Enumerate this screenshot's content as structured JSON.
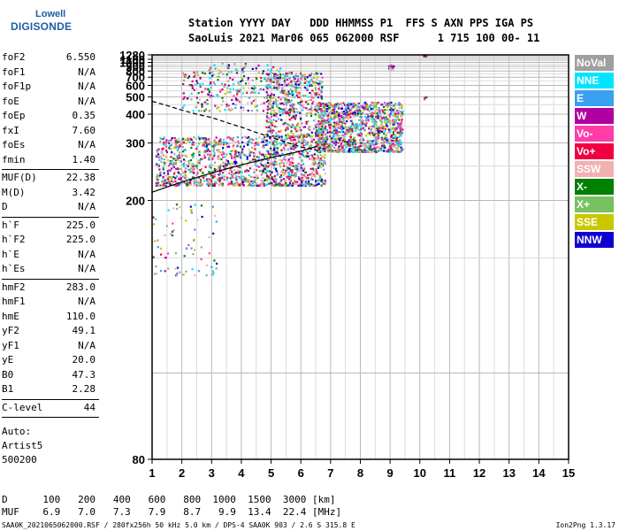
{
  "logo": {
    "line1": "Lowell",
    "line2": "DIGISONDE"
  },
  "header": {
    "line1": "Station YYYY DAY   DDD HHMMSS P1  FFS S AXN PPS IGA PS",
    "line2": "SaoLuis 2021 Mar06 065 062000 RSF      1 715 100 00- 11"
  },
  "params": [
    {
      "name": "foF2",
      "value": "6.550"
    },
    {
      "name": "foF1",
      "value": "N/A"
    },
    {
      "name": "foF1p",
      "value": "N/A"
    },
    {
      "name": "foE",
      "value": "N/A"
    },
    {
      "name": "foEp",
      "value": "0.35"
    },
    {
      "name": "fxI",
      "value": "7.60"
    },
    {
      "name": "foEs",
      "value": "N/A"
    },
    {
      "name": "fmin",
      "value": "1.40"
    },
    {
      "name": "MUF(D)",
      "value": "22.38"
    },
    {
      "name": "M(D)",
      "value": "3.42"
    },
    {
      "name": "D",
      "value": "N/A"
    },
    {
      "name": "h`F",
      "value": "225.0"
    },
    {
      "name": "h`F2",
      "value": "225.0"
    },
    {
      "name": "h`E",
      "value": "N/A"
    },
    {
      "name": "h`Es",
      "value": "N/A"
    },
    {
      "name": "hmF2",
      "value": "283.0"
    },
    {
      "name": "hmF1",
      "value": "N/A"
    },
    {
      "name": "hmE",
      "value": "110.0"
    },
    {
      "name": "yF2",
      "value": "49.1"
    },
    {
      "name": "yF1",
      "value": "N/A"
    },
    {
      "name": "yE",
      "value": "20.0"
    },
    {
      "name": "B0",
      "value": "47.3"
    },
    {
      "name": "B1",
      "value": "2.28"
    },
    {
      "name": "C-level",
      "value": "44"
    }
  ],
  "auto": {
    "line1": "Auto:",
    "line2": "Artist5",
    "line3": "500200"
  },
  "legend": [
    {
      "label": "NoVal",
      "color": "#a0a0a0"
    },
    {
      "label": "NNE",
      "color": "#00e5ff"
    },
    {
      "label": "E",
      "color": "#3aa0f0"
    },
    {
      "label": "W",
      "color": "#b000a0"
    },
    {
      "label": "Vo-",
      "color": "#ff3ca8"
    },
    {
      "label": "Vo+",
      "color": "#f00040"
    },
    {
      "label": "SSW",
      "color": "#f4b0b0"
    },
    {
      "label": "X-",
      "color": "#008000"
    },
    {
      "label": "X+",
      "color": "#78c060"
    },
    {
      "label": "SSE",
      "color": "#c8c800"
    },
    {
      "label": "NNW",
      "color": "#1000d0"
    }
  ],
  "chart_data": {
    "type": "scatter",
    "title": "",
    "xlabel": "",
    "ylabel": "",
    "xlim": [
      1,
      15
    ],
    "ylim": [
      80,
      1280
    ],
    "y_scale": "reciprocal",
    "grid": true,
    "x_ticks": [
      "1",
      "2",
      "3",
      "4",
      "5",
      "6",
      "7",
      "8",
      "9",
      "10",
      "11",
      "12",
      "13",
      "14",
      "15"
    ],
    "y_ticks": [
      {
        "value": 80,
        "label": "80"
      },
      {
        "value": 200,
        "label": "200"
      },
      {
        "value": 300,
        "label": "300"
      },
      {
        "value": 400,
        "label": "400"
      },
      {
        "value": 500,
        "label": "500"
      },
      {
        "value": 600,
        "label": "600"
      },
      {
        "value": 700,
        "label": "700"
      },
      {
        "value": 800,
        "label": "800"
      },
      {
        "value": 900,
        "label": "900"
      },
      {
        "value": 1000,
        "label": "1000"
      },
      {
        "value": 1100,
        "label": "1100"
      },
      {
        "value": 1280,
        "label": "1280"
      }
    ],
    "traces": [
      {
        "style": "solid",
        "points": [
          [
            1.0,
            210
          ],
          [
            2.0,
            224
          ],
          [
            3.0,
            238
          ],
          [
            4.0,
            252
          ],
          [
            5.0,
            266
          ],
          [
            6.0,
            280
          ],
          [
            6.55,
            292
          ]
        ]
      },
      {
        "style": "dashed",
        "points": [
          [
            1.0,
            470
          ],
          [
            1.5,
            445
          ],
          [
            2.0,
            420
          ],
          [
            2.5,
            400
          ],
          [
            3.0,
            385
          ],
          [
            3.5,
            365
          ],
          [
            4.0,
            348
          ],
          [
            4.5,
            330
          ],
          [
            5.0,
            316
          ],
          [
            5.5,
            302
          ],
          [
            6.0,
            290
          ],
          [
            6.55,
            282
          ]
        ]
      }
    ],
    "echo_clusters": [
      {
        "x": [
          1.1,
          6.8
        ],
        "y": [
          220,
          320
        ],
        "n": 1400,
        "note": "dense F-trace"
      },
      {
        "x": [
          6.5,
          9.4
        ],
        "y": [
          280,
          470
        ],
        "n": 1200,
        "note": "spread F"
      },
      {
        "x": [
          4.8,
          6.7
        ],
        "y": [
          320,
          780
        ],
        "n": 500,
        "note": "spread"
      },
      {
        "x": [
          2.0,
          6.0
        ],
        "y": [
          420,
          800
        ],
        "n": 280,
        "note": "sparse"
      },
      {
        "x": [
          1.0,
          3.2
        ],
        "y": [
          140,
          200
        ],
        "n": 80,
        "note": "low"
      },
      {
        "x": [
          2.8,
          5.3
        ],
        "y": [
          800,
          990
        ],
        "n": 40,
        "note": "upper"
      },
      {
        "x": [
          8.9,
          9.1
        ],
        "y": [
          850,
          950
        ],
        "n": 20,
        "note": "column"
      },
      {
        "x": [
          10.1,
          10.2
        ],
        "y": [
          490,
          510
        ],
        "n": 6,
        "note": "isolated"
      },
      {
        "x": [
          10.1,
          10.2
        ],
        "y": [
          1250,
          1270
        ],
        "n": 6,
        "note": "isolated"
      }
    ],
    "echo_colors": [
      "#ff3ca8",
      "#f00040",
      "#b000a0",
      "#3aa0f0",
      "#008000",
      "#78c060",
      "#1000d0",
      "#c8c800",
      "#00e5ff",
      "#a0a0a0",
      "#f4b0b0"
    ]
  },
  "dtable": {
    "row1": "D      100   200   400   600   800  1000  1500  3000 [km]",
    "row2": "MUF    6.9   7.0   7.3   7.9   8.7   9.9  13.4  22.4 [MHz]"
  },
  "footer": "SAA0K_2021065062000.RSF / 280fx256h 50 kHz 5.0 km / DPS-4 SAA0K 903 / 2.6 S 315.8 E",
  "version": "Ion2Png 1.3.17"
}
